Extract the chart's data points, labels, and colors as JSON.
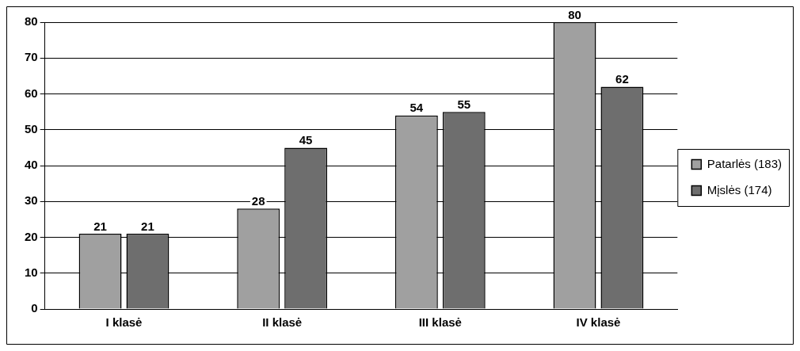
{
  "chart_data": {
    "type": "bar",
    "categories": [
      "I klasė",
      "II klasė",
      "III klasė",
      "IV klasė"
    ],
    "series": [
      {
        "name": "Patarlės (183)",
        "color": "#a0a0a0",
        "values": [
          21,
          28,
          54,
          80
        ]
      },
      {
        "name": "Mįslės (174)",
        "color": "#6e6e6e",
        "values": [
          21,
          45,
          55,
          62
        ]
      }
    ],
    "ylim": [
      0,
      80
    ],
    "yticks": [
      0,
      10,
      20,
      30,
      40,
      50,
      60,
      70,
      80
    ],
    "grid": "y",
    "legend": "right",
    "data_labels": true
  }
}
